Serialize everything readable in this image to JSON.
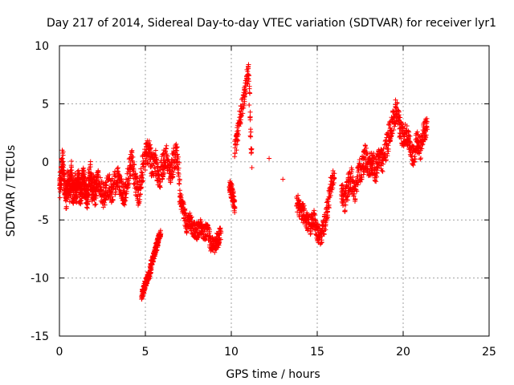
{
  "chart_data": {
    "type": "scatter",
    "title": "Day 217 of 2014, Sidereal Day-to-day VTEC variation (SDTVAR) for receiver lyr1",
    "xlabel": "GPS time / hours",
    "ylabel": "SDTVAR / TECUs",
    "xlim": [
      0,
      25
    ],
    "ylim": [
      -15,
      10
    ],
    "xticks": [
      "0",
      "5",
      "10",
      "15",
      "20",
      "25"
    ],
    "yticks": [
      "-15",
      "-10",
      "-5",
      "0",
      "5",
      "10"
    ],
    "grid": true,
    "marker": "+",
    "marker_color": "#ff0000",
    "series": [
      {
        "name": "SDTVAR",
        "segments": [
          {
            "x": [
              0.0,
              0.1,
              0.2,
              0.3,
              0.4,
              0.5,
              0.6,
              0.7,
              0.8,
              0.9,
              1.0,
              1.1,
              1.2,
              1.3,
              1.4,
              1.5,
              1.6,
              1.7,
              1.8,
              1.9,
              2.0,
              2.1,
              2.2,
              2.4,
              2.6,
              2.8,
              3.0,
              3.2,
              3.4,
              3.6,
              3.8,
              4.0,
              4.2,
              4.4,
              4.6,
              4.8,
              5.0,
              5.2,
              5.4,
              5.6,
              5.8,
              6.0,
              6.2,
              6.4,
              6.6,
              6.8,
              7.0
            ],
            "y": [
              -2.5,
              -1.0,
              0.2,
              -2.0,
              -3.0,
              -1.5,
              -2.5,
              -1.0,
              -3.0,
              -2.0,
              -2.5,
              -1.5,
              -3.0,
              -2.0,
              -1.5,
              -2.5,
              -3.0,
              -2.0,
              -1.0,
              -2.5,
              -2.0,
              -2.8,
              -1.5,
              -2.5,
              -3.0,
              -1.8,
              -2.5,
              -2.0,
              -1.5,
              -2.5,
              -2.8,
              -1.0,
              0.0,
              -1.5,
              -3.0,
              -1.0,
              0.5,
              1.0,
              -0.5,
              0.0,
              -1.5,
              -0.5,
              0.5,
              -1.0,
              -0.2,
              0.8,
              -1.5
            ],
            "spread": 1.1
          },
          {
            "x": [
              4.8,
              4.9,
              5.0,
              5.1,
              5.2,
              5.3,
              5.4,
              5.5,
              5.6,
              5.7,
              5.8,
              5.9
            ],
            "y": [
              -11.5,
              -11.0,
              -10.5,
              -10.0,
              -9.8,
              -9.2,
              -8.5,
              -8.0,
              -7.5,
              -7.0,
              -6.5,
              -6.2
            ],
            "spread": 0.4
          },
          {
            "x": [
              7.0,
              7.2,
              7.4,
              7.6,
              7.8,
              8.0,
              8.2,
              8.4,
              8.6,
              8.8,
              9.0,
              9.2,
              9.4
            ],
            "y": [
              -3.0,
              -4.0,
              -5.5,
              -5.0,
              -5.8,
              -6.0,
              -5.5,
              -6.2,
              -5.8,
              -7.0,
              -7.2,
              -6.8,
              -6.0
            ],
            "spread": 0.7
          },
          {
            "x": [
              9.9,
              10.0,
              10.1,
              10.2
            ],
            "y": [
              -2.0,
              -2.5,
              -3.0,
              -4.0
            ],
            "spread": 0.6
          },
          {
            "x": [
              10.2,
              10.4,
              10.6,
              10.8,
              11.0,
              11.2
            ],
            "y": [
              1.0,
              3.0,
              4.5,
              6.0,
              8.0,
              -0.5
            ],
            "spread": 0.8
          },
          {
            "x": [
              12.2,
              13.0
            ],
            "y": [
              0.3,
              -1.5
            ],
            "spread": 0.0
          },
          {
            "x": [
              13.8,
              14.0,
              14.2,
              14.4,
              14.6,
              14.8,
              15.0,
              15.2,
              15.4,
              15.6,
              15.8,
              16.0
            ],
            "y": [
              -3.5,
              -4.0,
              -4.5,
              -5.0,
              -5.5,
              -4.8,
              -6.0,
              -6.5,
              -5.5,
              -4.0,
              -2.0,
              -1.0
            ],
            "spread": 0.8
          },
          {
            "x": [
              16.4,
              16.6,
              16.8,
              17.0,
              17.2,
              17.4,
              17.6,
              17.8,
              18.0,
              18.2,
              18.4,
              18.6,
              18.8,
              19.0,
              19.2,
              19.4,
              19.6,
              19.8,
              20.0,
              20.2,
              20.4,
              20.6,
              20.8,
              21.0,
              21.2,
              21.4
            ],
            "y": [
              -2.5,
              -3.5,
              -2.0,
              -1.5,
              -2.5,
              -1.0,
              -0.5,
              0.5,
              -0.5,
              0.0,
              -0.8,
              0.5,
              0.0,
              1.0,
              2.5,
              3.5,
              4.5,
              3.0,
              2.0,
              2.5,
              1.5,
              0.5,
              2.0,
              1.0,
              2.5,
              2.8
            ],
            "spread": 1.0
          }
        ]
      }
    ]
  }
}
